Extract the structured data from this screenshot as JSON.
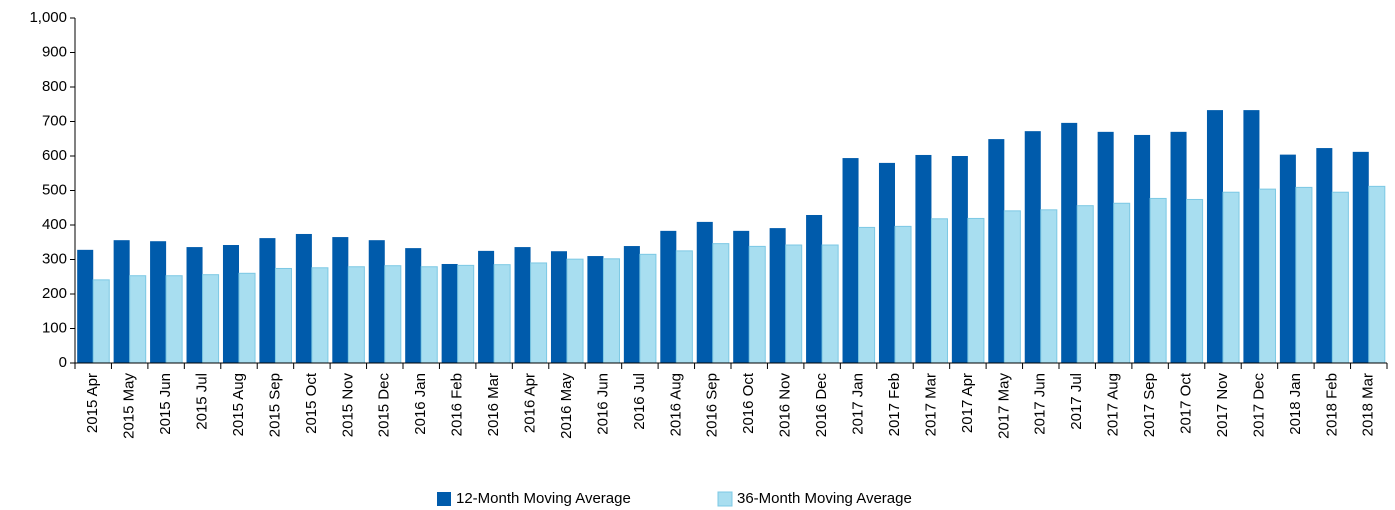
{
  "chart_data": {
    "type": "bar",
    "categories": [
      "2015 Apr",
      "2015 May",
      "2015 Jun",
      "2015 Jul",
      "2015 Aug",
      "2015 Sep",
      "2015 Oct",
      "2015 Nov",
      "2015 Dec",
      "2016 Jan",
      "2016 Feb",
      "2016 Mar",
      "2016 Apr",
      "2016 May",
      "2016 Jun",
      "2016 Jul",
      "2016 Aug",
      "2016 Sep",
      "2016 Oct",
      "2016 Nov",
      "2016 Dec",
      "2017 Jan",
      "2017 Feb",
      "2017 Mar",
      "2017 Apr",
      "2017 May",
      "2017 Jun",
      "2017 Jul",
      "2017 Aug",
      "2017 Sep",
      "2017 Oct",
      "2017 Nov",
      "2017 Dec",
      "2018 Jan",
      "2018 Feb",
      "2018 Mar"
    ],
    "series": [
      {
        "name": "12-Month Moving Average",
        "color": "#005bab",
        "values": [
          328,
          356,
          353,
          336,
          342,
          362,
          374,
          365,
          356,
          333,
          287,
          325,
          336,
          324,
          310,
          339,
          383,
          409,
          383,
          391,
          429,
          594,
          580,
          603,
          600,
          649,
          672,
          696,
          670,
          661,
          670,
          733,
          733,
          604,
          623,
          612
        ]
      },
      {
        "name": "36-Month Moving Average",
        "color": "#a8def0",
        "values": [
          241,
          253,
          253,
          256,
          260,
          274,
          276,
          279,
          282,
          279,
          283,
          285,
          290,
          301,
          302,
          315,
          325,
          346,
          338,
          342,
          342,
          393,
          396,
          418,
          419,
          441,
          444,
          456,
          463,
          477,
          474,
          495,
          504,
          509,
          495,
          512
        ]
      }
    ],
    "ylim": [
      0,
      1000
    ],
    "yticks": [
      0,
      100,
      200,
      300,
      400,
      500,
      600,
      700,
      800,
      900,
      {
        "value": 1000,
        "label": "1,000"
      }
    ],
    "legend": "bottom"
  }
}
